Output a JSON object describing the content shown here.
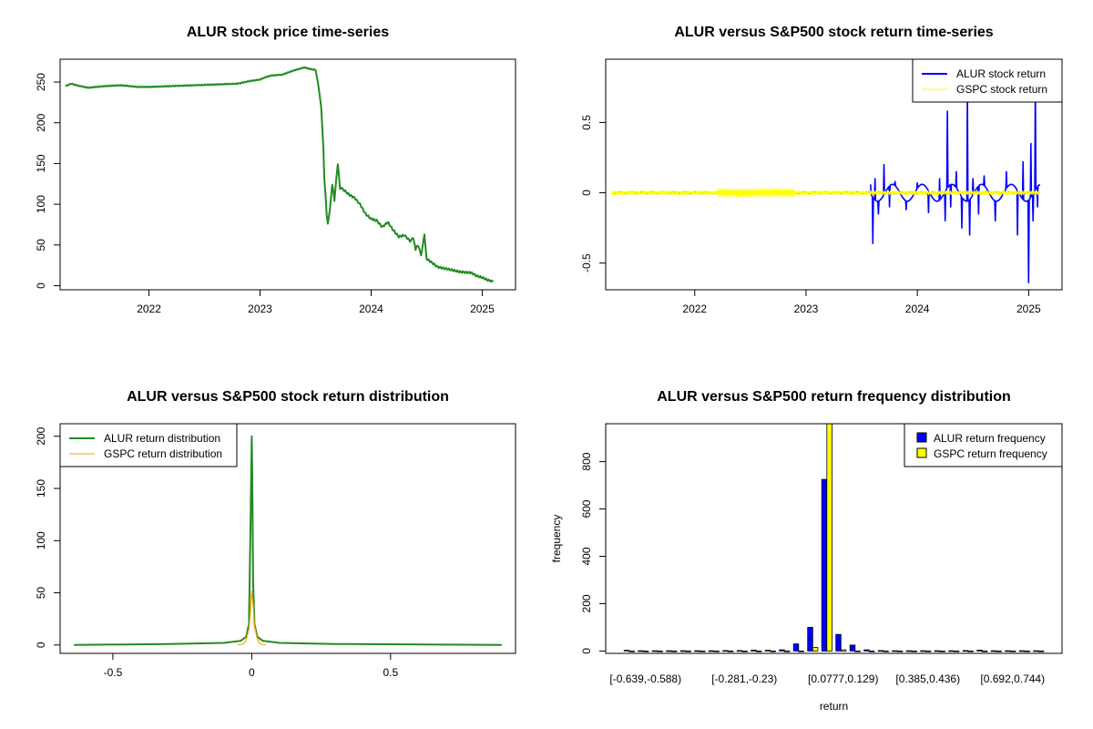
{
  "chart_data": [
    {
      "type": "line",
      "title": "ALUR stock price time-series",
      "xlabel": "",
      "ylabel": "",
      "xlim": [
        2021.2,
        2025.3
      ],
      "ylim": [
        -5,
        278
      ],
      "x_ticks": [
        2022,
        2023,
        2024,
        2025
      ],
      "y_ticks": [
        0,
        50,
        100,
        150,
        200,
        250
      ],
      "series": [
        {
          "name": "ALUR price",
          "color": "#228B22",
          "x": [
            2021.25,
            2021.3,
            2021.35,
            2021.45,
            2021.6,
            2021.75,
            2021.9,
            2022.0,
            2022.2,
            2022.4,
            2022.6,
            2022.8,
            2022.9,
            2023.0,
            2023.05,
            2023.1,
            2023.2,
            2023.3,
            2023.4,
            2023.45,
            2023.5,
            2023.52,
            2023.55,
            2023.57,
            2023.58,
            2023.6,
            2023.61,
            2023.63,
            2023.65,
            2023.67,
            2023.7,
            2023.72,
            2023.75,
            2023.8,
            2023.85,
            2023.9,
            2023.95,
            2024.0,
            2024.05,
            2024.1,
            2024.15,
            2024.2,
            2024.25,
            2024.3,
            2024.35,
            2024.38,
            2024.4,
            2024.42,
            2024.45,
            2024.48,
            2024.5,
            2024.55,
            2024.6,
            2024.7,
            2024.8,
            2024.9,
            2024.95,
            2025.0,
            2025.05,
            2025.1
          ],
          "values": [
            245,
            248,
            246,
            243,
            245,
            246,
            244,
            244,
            245,
            246,
            247,
            248,
            251,
            253,
            256,
            258,
            259,
            264,
            268,
            266,
            265,
            250,
            220,
            170,
            130,
            88,
            75,
            95,
            125,
            105,
            150,
            120,
            118,
            112,
            108,
            100,
            88,
            82,
            80,
            72,
            78,
            68,
            60,
            62,
            55,
            58,
            45,
            50,
            38,
            62,
            33,
            28,
            23,
            20,
            17,
            16,
            12,
            10,
            7,
            5
          ]
        }
      ]
    },
    {
      "type": "line",
      "title": "ALUR versus S&P500 stock return time-series",
      "xlabel": "",
      "ylabel": "",
      "xlim": [
        2021.2,
        2025.3
      ],
      "ylim": [
        -0.69,
        0.95
      ],
      "x_ticks": [
        2022,
        2023,
        2024,
        2025
      ],
      "y_ticks": [
        -0.5,
        0.0,
        0.5
      ],
      "legend": [
        "ALUR stock return",
        "GSPC stock return"
      ],
      "legend_position": "top-right",
      "series": [
        {
          "name": "ALUR stock return",
          "color": "#0000FF",
          "x": [
            2023.58,
            2023.6,
            2023.62,
            2023.65,
            2023.7,
            2023.75,
            2023.8,
            2023.9,
            2024.0,
            2024.1,
            2024.2,
            2024.25,
            2024.27,
            2024.3,
            2024.35,
            2024.4,
            2024.45,
            2024.47,
            2024.5,
            2024.55,
            2024.6,
            2024.7,
            2024.8,
            2024.9,
            2024.95,
            2025.0,
            2025.02,
            2025.04,
            2025.06,
            2025.08,
            2025.1
          ],
          "values": [
            0.06,
            -0.36,
            0.1,
            -0.15,
            0.2,
            -0.1,
            0.08,
            -0.12,
            0.07,
            -0.14,
            0.1,
            -0.2,
            0.58,
            -0.1,
            0.15,
            -0.25,
            0.72,
            -0.3,
            0.1,
            -0.15,
            0.12,
            -0.2,
            0.15,
            -0.3,
            0.22,
            -0.64,
            0.35,
            -0.2,
            0.78,
            -0.1,
            0.05
          ]
        },
        {
          "name": "GSPC stock return",
          "color": "#FFFF00",
          "amplitude": 0.03
        }
      ]
    },
    {
      "type": "line",
      "title": "ALUR versus S&P500 stock return distribution",
      "xlabel": "",
      "ylabel": "",
      "xlim": [
        -0.69,
        0.95
      ],
      "ylim": [
        -8,
        212
      ],
      "x_ticks": [
        -0.5,
        0.0,
        0.5
      ],
      "y_ticks": [
        0,
        50,
        100,
        150,
        200
      ],
      "legend": [
        "ALUR return distribution",
        "GSPC return distribution"
      ],
      "legend_position": "top-left",
      "series": [
        {
          "name": "ALUR return distribution",
          "color": "#228B22",
          "x": [
            -0.64,
            -0.3,
            -0.1,
            -0.04,
            -0.02,
            -0.01,
            -0.005,
            0.0,
            0.002,
            0.005,
            0.01,
            0.02,
            0.04,
            0.1,
            0.3,
            0.9
          ],
          "values": [
            0,
            1,
            2,
            4,
            8,
            20,
            100,
            200,
            160,
            60,
            20,
            8,
            4,
            2,
            1,
            0
          ]
        },
        {
          "name": "GSPC return distribution",
          "color": "#FFA500",
          "x": [
            -0.05,
            -0.03,
            -0.02,
            -0.01,
            -0.005,
            0.0,
            0.005,
            0.01,
            0.02,
            0.03,
            0.05
          ],
          "values": [
            0,
            1,
            5,
            15,
            30,
            52,
            38,
            18,
            6,
            1,
            0
          ]
        }
      ]
    },
    {
      "type": "bar",
      "title": "ALUR versus S&P500 return frequency distribution",
      "xlabel": "return",
      "ylabel": "frequency",
      "ylim": [
        -10,
        960
      ],
      "y_ticks": [
        0,
        200,
        400,
        600,
        800
      ],
      "x_tick_labels": [
        "[-0.639,-0.588)",
        "[-0.281,-0.23)",
        "[0.0777,0.129)",
        "[0.385,0.436)",
        "[0.692,0.744)"
      ],
      "x_tick_label_bins": [
        0,
        7,
        14,
        20,
        26
      ],
      "legend": [
        "ALUR return frequency",
        "GSPC return frequency"
      ],
      "legend_position": "top-right",
      "series": [
        {
          "name": "ALUR return frequency",
          "color": "#0000FF",
          "values": [
            3,
            1,
            1,
            1,
            1,
            1,
            1,
            2,
            2,
            4,
            3,
            5,
            30,
            100,
            725,
            70,
            25,
            5,
            2,
            1,
            1,
            1,
            1,
            1,
            2,
            4,
            1,
            1,
            1,
            1
          ]
        },
        {
          "name": "GSPC return frequency",
          "color": "#FFFF00",
          "values": [
            0,
            0,
            0,
            0,
            0,
            0,
            0,
            0,
            0,
            0,
            0,
            0,
            0,
            15,
            960,
            5,
            0,
            0,
            0,
            0,
            0,
            0,
            0,
            0,
            0,
            0,
            0,
            0,
            0,
            0
          ]
        }
      ]
    }
  ]
}
